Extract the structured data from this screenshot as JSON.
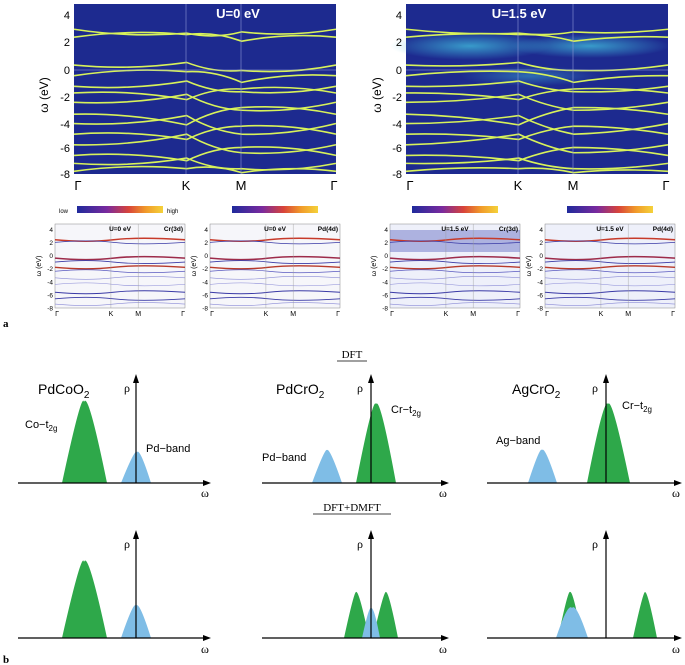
{
  "panel_a": {
    "label": "a",
    "big_plots": [
      {
        "title": "U=0 eV",
        "ylabel": "ω (eV)",
        "yticks": [
          "4",
          "2",
          "0",
          "-2",
          "-4",
          "-6",
          "-8"
        ],
        "xticks": [
          "Γ",
          "K",
          "M",
          "Γ"
        ]
      },
      {
        "title": "U=1.5 eV",
        "ylabel": "ω (eV)",
        "yticks": [
          "4",
          "2",
          "0",
          "-2",
          "-4",
          "-6",
          "-8"
        ],
        "xticks": [
          "Γ",
          "K",
          "M",
          "Γ"
        ]
      }
    ],
    "small_plots": [
      {
        "u": "U=0 eV",
        "orbital": "Cr(3d)",
        "ylabel": "ω (eV)",
        "yticks": [
          "4",
          "2",
          "0",
          "-2",
          "-4",
          "-6",
          "-8"
        ],
        "xticks": [
          "Γ",
          "K",
          "M",
          "Γ"
        ],
        "colorbar_low": "low",
        "colorbar_high": "high"
      },
      {
        "u": "U=0 eV",
        "orbital": "Pd(4d)",
        "ylabel": "ω (eV)",
        "yticks": [
          "4",
          "2",
          "0",
          "-2",
          "-4",
          "-6",
          "-8"
        ],
        "xticks": [
          "Γ",
          "K",
          "M",
          "Γ"
        ]
      },
      {
        "u": "U=1.5 eV",
        "orbital": "Cr(3d)",
        "ylabel": "ω (eV)",
        "yticks": [
          "4",
          "2",
          "0",
          "-2",
          "-4",
          "-6",
          "-8"
        ],
        "xticks": [
          "Γ",
          "K",
          "M",
          "Γ"
        ]
      },
      {
        "u": "U=1.5 eV",
        "orbital": "Pd(4d)",
        "ylabel": "ω (eV)",
        "yticks": [
          "4",
          "2",
          "0",
          "-2",
          "-4",
          "-6",
          "-8"
        ],
        "xticks": [
          "Γ",
          "K",
          "M",
          "Γ"
        ]
      }
    ]
  },
  "panel_b": {
    "label": "b",
    "row_dft_title": "DFT",
    "row_dmft_title": "DFT+DMFT",
    "axis_rho": "ρ",
    "axis_omega": "ω",
    "compounds": [
      {
        "name_main": "PdCoO",
        "name_sub": "2",
        "band1_main": "Co−t",
        "band1_sub": "2g",
        "band2": "Pd−band"
      },
      {
        "name_main": "PdCrO",
        "name_sub": "2",
        "band1_main": "Cr−t",
        "band1_sub": "2g",
        "band2": "Pd−band"
      },
      {
        "name_main": "AgCrO",
        "name_sub": "2",
        "band1_main": "Cr−t",
        "band1_sub": "2g",
        "band2": "Ag−band"
      }
    ],
    "colors": {
      "t2g_green": "#2ea84a",
      "band_blue": "#7fbde6"
    }
  },
  "colors": {
    "plot_bg": "#1d2a8f",
    "band_line": "#d8f25a",
    "lowU_bg": "#e9ecf6"
  }
}
